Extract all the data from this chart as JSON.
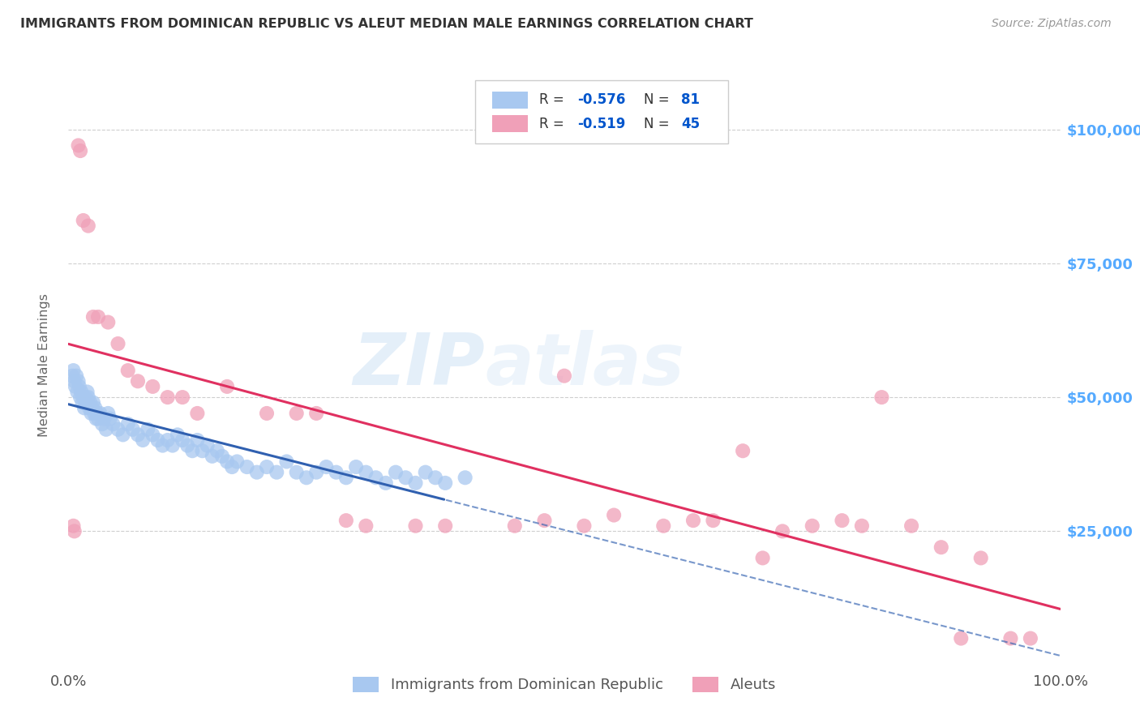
{
  "title": "IMMIGRANTS FROM DOMINICAN REPUBLIC VS ALEUT MEDIAN MALE EARNINGS CORRELATION CHART",
  "source": "Source: ZipAtlas.com",
  "ylabel": "Median Male Earnings",
  "ytick_labels": [
    "$25,000",
    "$50,000",
    "$75,000",
    "$100,000"
  ],
  "ytick_values": [
    25000,
    50000,
    75000,
    100000
  ],
  "legend_label1": "Immigrants from Dominican Republic",
  "legend_label2": "Aleuts",
  "R_blue": -0.576,
  "N_blue": 81,
  "R_pink": -0.519,
  "N_pink": 45,
  "blue_color": "#A8C8F0",
  "pink_color": "#F0A0B8",
  "blue_line_color": "#3060B0",
  "pink_line_color": "#E03060",
  "title_color": "#333333",
  "right_axis_color": "#55AAFF",
  "background_color": "#FFFFFF",
  "grid_color": "#BBBBBB",
  "blue_x": [
    0.4,
    0.5,
    0.6,
    0.7,
    0.8,
    0.9,
    1.0,
    1.1,
    1.2,
    1.3,
    1.4,
    1.5,
    1.6,
    1.7,
    1.8,
    1.9,
    2.0,
    2.1,
    2.2,
    2.3,
    2.4,
    2.5,
    2.6,
    2.7,
    2.8,
    2.9,
    3.0,
    3.2,
    3.4,
    3.6,
    3.8,
    4.0,
    4.2,
    4.5,
    5.0,
    5.5,
    6.0,
    6.5,
    7.0,
    7.5,
    8.0,
    8.5,
    9.0,
    9.5,
    10.0,
    10.5,
    11.0,
    11.5,
    12.0,
    12.5,
    13.0,
    13.5,
    14.0,
    14.5,
    15.0,
    15.5,
    16.0,
    16.5,
    17.0,
    18.0,
    19.0,
    20.0,
    21.0,
    22.0,
    23.0,
    24.0,
    25.0,
    26.0,
    27.0,
    28.0,
    29.0,
    30.0,
    31.0,
    32.0,
    33.0,
    34.0,
    35.0,
    36.0,
    37.0,
    38.0,
    40.0
  ],
  "blue_y": [
    54000,
    55000,
    53000,
    52000,
    54000,
    51000,
    53000,
    52000,
    50000,
    51000,
    49000,
    50000,
    48000,
    50000,
    49000,
    51000,
    50000,
    48000,
    49000,
    47000,
    48000,
    49000,
    47000,
    48000,
    46000,
    47000,
    46000,
    47000,
    45000,
    46000,
    44000,
    47000,
    46000,
    45000,
    44000,
    43000,
    45000,
    44000,
    43000,
    42000,
    44000,
    43000,
    42000,
    41000,
    42000,
    41000,
    43000,
    42000,
    41000,
    40000,
    42000,
    40000,
    41000,
    39000,
    40000,
    39000,
    38000,
    37000,
    38000,
    37000,
    36000,
    37000,
    36000,
    38000,
    36000,
    35000,
    36000,
    37000,
    36000,
    35000,
    37000,
    36000,
    35000,
    34000,
    36000,
    35000,
    34000,
    36000,
    35000,
    34000,
    35000
  ],
  "pink_x": [
    0.5,
    0.6,
    1.0,
    1.2,
    1.5,
    2.0,
    2.5,
    3.0,
    4.0,
    5.0,
    6.0,
    7.0,
    8.5,
    10.0,
    11.5,
    13.0,
    16.0,
    20.0,
    23.0,
    25.0,
    28.0,
    30.0,
    35.0,
    38.0,
    45.0,
    48.0,
    50.0,
    52.0,
    55.0,
    60.0,
    63.0,
    65.0,
    68.0,
    70.0,
    72.0,
    75.0,
    78.0,
    80.0,
    82.0,
    85.0,
    88.0,
    90.0,
    92.0,
    95.0,
    97.0
  ],
  "pink_y": [
    26000,
    25000,
    97000,
    96000,
    83000,
    82000,
    65000,
    65000,
    64000,
    60000,
    55000,
    53000,
    52000,
    50000,
    50000,
    47000,
    52000,
    47000,
    47000,
    47000,
    27000,
    26000,
    26000,
    26000,
    26000,
    27000,
    54000,
    26000,
    28000,
    26000,
    27000,
    27000,
    40000,
    20000,
    25000,
    26000,
    27000,
    26000,
    50000,
    26000,
    22000,
    5000,
    20000,
    5000,
    5000
  ],
  "blue_solid_xmax": 38.0,
  "xlim": [
    0,
    100
  ],
  "ylim": [
    0,
    112000
  ],
  "watermark": "ZIPAtlas",
  "watermark_color": "#C0DCFF",
  "watermark_alpha": 0.35
}
